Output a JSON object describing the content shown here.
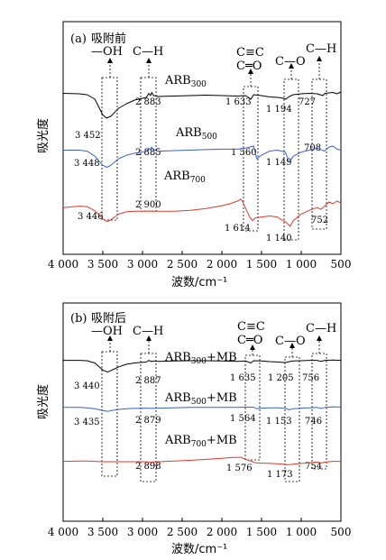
{
  "chart_data": [
    {
      "type": "line",
      "panel_label": "(a)",
      "title": "吸附前",
      "xlabel": "波数/cm⁻¹",
      "ylabel": "吸光度",
      "xlim": [
        4000,
        500
      ],
      "x_ticks": [
        "4 000",
        "3 500",
        "3 000",
        "2 500",
        "2 000",
        "1 500",
        "1 000",
        "500"
      ],
      "group_labels": [
        {
          "text": "—OH",
          "x": 3450
        },
        {
          "text": "C—H",
          "x": 2880
        },
        {
          "text": "C≡C",
          "x": 1600,
          "line2": "C═O"
        },
        {
          "text": "C—O",
          "x": 1160
        },
        {
          "text": "C—H",
          "x": 740
        }
      ],
      "series": [
        {
          "name": "ARB",
          "sub": "300",
          "color": "#000000",
          "points": [
            [
              4000,
              0.93
            ],
            [
              3800,
              0.92
            ],
            [
              3700,
              0.9
            ],
            [
              3600,
              0.8
            ],
            [
              3500,
              0.45
            ],
            [
              3452,
              0.38
            ],
            [
              3400,
              0.42
            ],
            [
              3300,
              0.6
            ],
            [
              3200,
              0.7
            ],
            [
              3100,
              0.78
            ],
            [
              3000,
              0.82
            ],
            [
              2950,
              0.84
            ],
            [
              2920,
              0.93
            ],
            [
              2900,
              0.88
            ],
            [
              2883,
              0.95
            ],
            [
              2860,
              0.88
            ],
            [
              2800,
              0.86
            ],
            [
              2600,
              0.87
            ],
            [
              2400,
              0.88
            ],
            [
              2200,
              0.89
            ],
            [
              2000,
              0.88
            ],
            [
              1800,
              0.87
            ],
            [
              1700,
              0.88
            ],
            [
              1633,
              0.8
            ],
            [
              1600,
              0.9
            ],
            [
              1500,
              0.88
            ],
            [
              1400,
              0.85
            ],
            [
              1300,
              0.84
            ],
            [
              1250,
              0.83
            ],
            [
              1194,
              0.8
            ],
            [
              1150,
              0.86
            ],
            [
              1100,
              0.9
            ],
            [
              1000,
              0.92
            ],
            [
              900,
              0.93
            ],
            [
              800,
              0.92
            ],
            [
              727,
              0.88
            ],
            [
              700,
              0.93
            ],
            [
              600,
              0.95
            ],
            [
              550,
              0.92
            ],
            [
              500,
              0.96
            ]
          ]
        },
        {
          "name": "ARB",
          "sub": "500",
          "color": "#3a5fcd",
          "points": [
            [
              4000,
              0.42
            ],
            [
              3800,
              0.42
            ],
            [
              3700,
              0.4
            ],
            [
              3600,
              0.3
            ],
            [
              3500,
              0.12
            ],
            [
              3448,
              0.08
            ],
            [
              3400,
              0.12
            ],
            [
              3300,
              0.25
            ],
            [
              3200,
              0.32
            ],
            [
              3100,
              0.36
            ],
            [
              3000,
              0.38
            ],
            [
              2950,
              0.4
            ],
            [
              2920,
              0.46
            ],
            [
              2900,
              0.42
            ],
            [
              2885,
              0.48
            ],
            [
              2860,
              0.42
            ],
            [
              2800,
              0.4
            ],
            [
              2600,
              0.41
            ],
            [
              2400,
              0.42
            ],
            [
              2200,
              0.43
            ],
            [
              2000,
              0.44
            ],
            [
              1800,
              0.44
            ],
            [
              1700,
              0.46
            ],
            [
              1600,
              0.5
            ],
            [
              1560,
              0.25
            ],
            [
              1500,
              0.32
            ],
            [
              1400,
              0.4
            ],
            [
              1300,
              0.42
            ],
            [
              1200,
              0.38
            ],
            [
              1149,
              0.18
            ],
            [
              1100,
              0.3
            ],
            [
              1000,
              0.38
            ],
            [
              900,
              0.42
            ],
            [
              800,
              0.46
            ],
            [
              708,
              0.4
            ],
            [
              650,
              0.48
            ],
            [
              600,
              0.5
            ],
            [
              550,
              0.44
            ],
            [
              500,
              0.42
            ]
          ]
        },
        {
          "name": "ARB",
          "sub": "700",
          "color": "#e03a2a",
          "points": [
            [
              4000,
              0.42
            ],
            [
              3800,
              0.45
            ],
            [
              3700,
              0.44
            ],
            [
              3600,
              0.35
            ],
            [
              3500,
              0.18
            ],
            [
              3446,
              0.12
            ],
            [
              3400,
              0.16
            ],
            [
              3300,
              0.28
            ],
            [
              3200,
              0.33
            ],
            [
              3100,
              0.34
            ],
            [
              3000,
              0.34
            ],
            [
              2900,
              0.34
            ],
            [
              2800,
              0.34
            ],
            [
              2600,
              0.34
            ],
            [
              2400,
              0.36
            ],
            [
              2200,
              0.4
            ],
            [
              2000,
              0.46
            ],
            [
              1900,
              0.5
            ],
            [
              1800,
              0.56
            ],
            [
              1760,
              0.6
            ],
            [
              1740,
              0.55
            ],
            [
              1700,
              0.4
            ],
            [
              1650,
              0.22
            ],
            [
              1614,
              0.14
            ],
            [
              1580,
              0.2
            ],
            [
              1500,
              0.22
            ],
            [
              1400,
              0.24
            ],
            [
              1300,
              0.22
            ],
            [
              1250,
              0.16
            ],
            [
              1200,
              0.12
            ],
            [
              1140,
              0.02
            ],
            [
              1100,
              0.14
            ],
            [
              1000,
              0.28
            ],
            [
              900,
              0.36
            ],
            [
              800,
              0.42
            ],
            [
              752,
              0.38
            ],
            [
              700,
              0.46
            ],
            [
              650,
              0.54
            ],
            [
              600,
              0.5
            ],
            [
              550,
              0.56
            ],
            [
              500,
              0.52
            ]
          ]
        }
      ],
      "peak_labels": [
        {
          "text": "3 452",
          "x": 3452
        },
        {
          "text": "2 883",
          "x": 2883
        },
        {
          "text": "1 633",
          "x": 1633
        },
        {
          "text": "1 194",
          "x": 1194
        },
        {
          "text": "727",
          "x": 727
        },
        {
          "text": "3 448",
          "x": 3448
        },
        {
          "text": "2 885",
          "x": 2885
        },
        {
          "text": "1 560",
          "x": 1560
        },
        {
          "text": "1 149",
          "x": 1149
        },
        {
          "text": "708",
          "x": 708
        },
        {
          "text": "3 446",
          "x": 3446
        },
        {
          "text": "2 900",
          "x": 2900
        },
        {
          "text": "1 614",
          "x": 1614
        },
        {
          "text": "1 140",
          "x": 1140
        },
        {
          "text": "752",
          "x": 752
        }
      ]
    },
    {
      "type": "line",
      "panel_label": "(b)",
      "title": "吸附后",
      "xlabel": "波数/cm⁻¹",
      "ylabel": "吸光度",
      "xlim": [
        4000,
        500
      ],
      "x_ticks": [
        "4 000",
        "3 500",
        "3 000",
        "2 500",
        "2 000",
        "1 500",
        "1 000",
        "500"
      ],
      "group_labels": [
        {
          "text": "—OH",
          "x": 3450
        },
        {
          "text": "C—H",
          "x": 2880
        },
        {
          "text": "C≡C",
          "x": 1600,
          "line2": "C═O"
        },
        {
          "text": "C—O",
          "x": 1160
        },
        {
          "text": "C—H",
          "x": 740
        }
      ],
      "series": [
        {
          "name": "ARB",
          "sub": "300",
          "suffix": "+MB",
          "color": "#000000",
          "points": [
            [
              4000,
              0.9
            ],
            [
              3800,
              0.9
            ],
            [
              3700,
              0.89
            ],
            [
              3600,
              0.82
            ],
            [
              3500,
              0.6
            ],
            [
              3440,
              0.54
            ],
            [
              3400,
              0.58
            ],
            [
              3300,
              0.7
            ],
            [
              3200,
              0.78
            ],
            [
              3100,
              0.82
            ],
            [
              3000,
              0.84
            ],
            [
              2950,
              0.85
            ],
            [
              2920,
              0.9
            ],
            [
              2887,
              0.86
            ],
            [
              2860,
              0.88
            ],
            [
              2800,
              0.87
            ],
            [
              2600,
              0.88
            ],
            [
              2400,
              0.89
            ],
            [
              2200,
              0.89
            ],
            [
              2000,
              0.88
            ],
            [
              1800,
              0.87
            ],
            [
              1700,
              0.88
            ],
            [
              1635,
              0.82
            ],
            [
              1600,
              0.89
            ],
            [
              1500,
              0.88
            ],
            [
              1400,
              0.86
            ],
            [
              1300,
              0.85
            ],
            [
              1205,
              0.83
            ],
            [
              1150,
              0.86
            ],
            [
              1100,
              0.88
            ],
            [
              1000,
              0.89
            ],
            [
              900,
              0.9
            ],
            [
              800,
              0.9
            ],
            [
              756,
              0.87
            ],
            [
              700,
              0.9
            ],
            [
              600,
              0.91
            ],
            [
              500,
              0.9
            ]
          ]
        },
        {
          "name": "ARB",
          "sub": "500",
          "suffix": "+MB",
          "color": "#3a5fcd",
          "points": [
            [
              4000,
              0.56
            ],
            [
              3800,
              0.56
            ],
            [
              3700,
              0.55
            ],
            [
              3600,
              0.52
            ],
            [
              3500,
              0.47
            ],
            [
              3435,
              0.44
            ],
            [
              3400,
              0.46
            ],
            [
              3300,
              0.5
            ],
            [
              3200,
              0.52
            ],
            [
              3100,
              0.53
            ],
            [
              3000,
              0.54
            ],
            [
              2879,
              0.53
            ],
            [
              2800,
              0.54
            ],
            [
              2600,
              0.55
            ],
            [
              2400,
              0.56
            ],
            [
              2200,
              0.56
            ],
            [
              2000,
              0.56
            ],
            [
              1800,
              0.56
            ],
            [
              1700,
              0.57
            ],
            [
              1600,
              0.57
            ],
            [
              1564,
              0.52
            ],
            [
              1500,
              0.54
            ],
            [
              1400,
              0.55
            ],
            [
              1300,
              0.55
            ],
            [
              1200,
              0.53
            ],
            [
              1153,
              0.49
            ],
            [
              1100,
              0.52
            ],
            [
              1000,
              0.54
            ],
            [
              900,
              0.55
            ],
            [
              800,
              0.56
            ],
            [
              746,
              0.53
            ],
            [
              700,
              0.56
            ],
            [
              600,
              0.58
            ],
            [
              500,
              0.57
            ]
          ]
        },
        {
          "name": "ARB",
          "sub": "700",
          "suffix": "+MB",
          "color": "#e03a2a",
          "points": [
            [
              4000,
              0.22
            ],
            [
              3800,
              0.23
            ],
            [
              3700,
              0.23
            ],
            [
              3600,
              0.22
            ],
            [
              3500,
              0.21
            ],
            [
              3400,
              0.21
            ],
            [
              3300,
              0.21
            ],
            [
              3200,
              0.21
            ],
            [
              3100,
              0.21
            ],
            [
              3000,
              0.21
            ],
            [
              2898,
              0.2
            ],
            [
              2800,
              0.21
            ],
            [
              2600,
              0.23
            ],
            [
              2400,
              0.25
            ],
            [
              2200,
              0.28
            ],
            [
              2000,
              0.31
            ],
            [
              1900,
              0.33
            ],
            [
              1800,
              0.34
            ],
            [
              1760,
              0.34
            ],
            [
              1700,
              0.28
            ],
            [
              1650,
              0.24
            ],
            [
              1576,
              0.18
            ],
            [
              1500,
              0.17
            ],
            [
              1400,
              0.16
            ],
            [
              1300,
              0.15
            ],
            [
              1173,
              0.12
            ],
            [
              1100,
              0.14
            ],
            [
              1000,
              0.16
            ],
            [
              900,
              0.18
            ],
            [
              800,
              0.2
            ],
            [
              754,
              0.17
            ],
            [
              700,
              0.2
            ],
            [
              600,
              0.22
            ],
            [
              500,
              0.22
            ]
          ]
        }
      ],
      "peak_labels": [
        {
          "text": "3 440",
          "x": 3440
        },
        {
          "text": "2 887",
          "x": 2887
        },
        {
          "text": "1 635",
          "x": 1635
        },
        {
          "text": "1 205",
          "x": 1205
        },
        {
          "text": "756",
          "x": 756
        },
        {
          "text": "3 435",
          "x": 3435
        },
        {
          "text": "2 879",
          "x": 2879
        },
        {
          "text": "1 564",
          "x": 1564
        },
        {
          "text": "1 153",
          "x": 1153
        },
        {
          "text": "746",
          "x": 746
        },
        {
          "text": "2 898",
          "x": 2898
        },
        {
          "text": "1 576",
          "x": 1576
        },
        {
          "text": "1 173",
          "x": 1173
        },
        {
          "text": "754",
          "x": 754
        }
      ]
    }
  ]
}
